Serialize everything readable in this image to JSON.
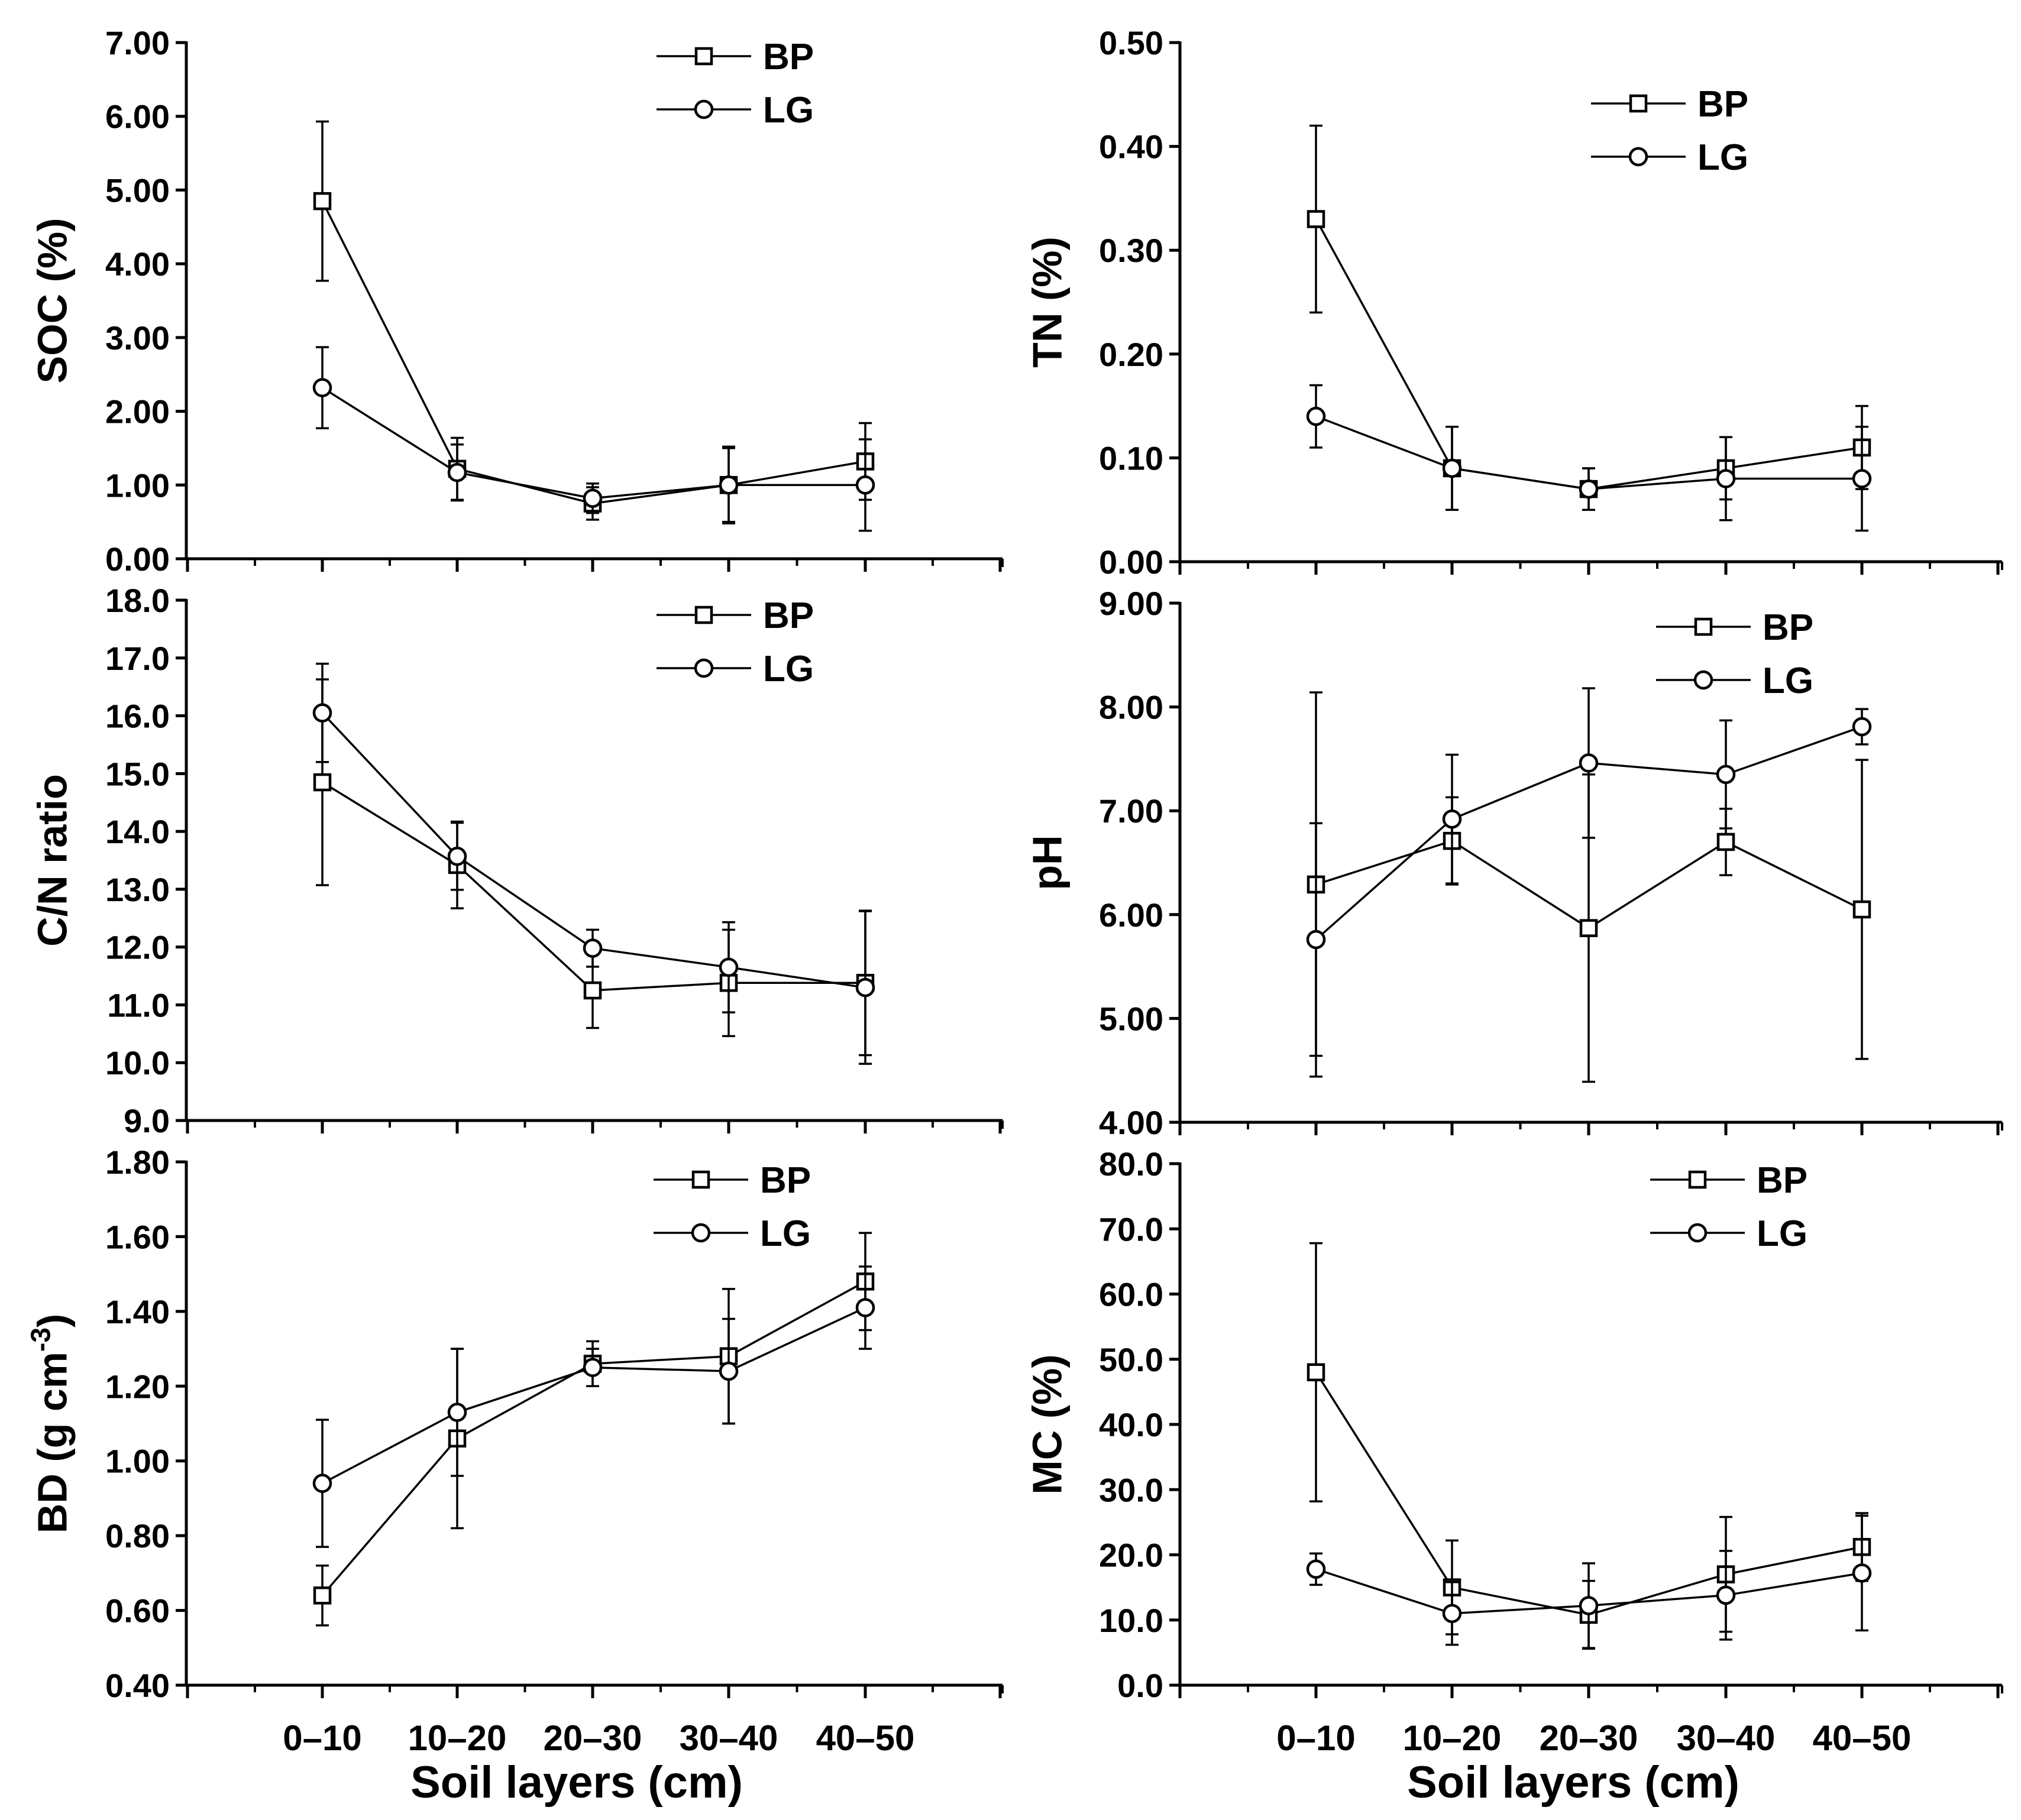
{
  "figure": {
    "x_axis_title": "Soil layers (cm)",
    "categories": [
      "0–10",
      "10–20",
      "20–30",
      "30–40",
      "40–50"
    ]
  },
  "chart_data": [
    {
      "id": "soc",
      "type": "line",
      "title": "",
      "ylabel": "SOC (%)",
      "ylim": [
        0,
        7
      ],
      "yticks": [
        "0.00",
        "1.00",
        "2.00",
        "3.00",
        "4.00",
        "5.00",
        "6.00",
        "7.00"
      ],
      "categories": [
        "0–10",
        "10–20",
        "20–30",
        "30–40",
        "40–50"
      ],
      "show_x_labels": false,
      "legend": "top-right",
      "series": [
        {
          "name": "BP",
          "marker": "square",
          "values": [
            4.85,
            1.22,
            0.75,
            1.0,
            1.32
          ],
          "errors": [
            1.08,
            0.42,
            0.22,
            0.52,
            0.52
          ]
        },
        {
          "name": "LG",
          "marker": "circle",
          "values": [
            2.32,
            1.17,
            0.82,
            1.0,
            1.0
          ],
          "errors": [
            0.55,
            0.38,
            0.2,
            0.5,
            0.62
          ]
        }
      ]
    },
    {
      "id": "tn",
      "type": "line",
      "title": "",
      "ylabel": "TN (%)",
      "ylim": [
        0,
        0.5
      ],
      "yticks": [
        "0.00",
        "0.10",
        "0.20",
        "0.30",
        "0.40",
        "0.50"
      ],
      "categories": [
        "0–10",
        "10–20",
        "20–30",
        "30–40",
        "40–50"
      ],
      "show_x_labels": false,
      "legend": "top-right",
      "series": [
        {
          "name": "BP",
          "marker": "square",
          "values": [
            0.33,
            0.09,
            0.07,
            0.09,
            0.11
          ],
          "errors": [
            0.09,
            0.04,
            0.02,
            0.03,
            0.04
          ]
        },
        {
          "name": "LG",
          "marker": "circle",
          "values": [
            0.14,
            0.09,
            0.07,
            0.08,
            0.08
          ],
          "errors": [
            0.03,
            0.04,
            0.02,
            0.04,
            0.05
          ]
        }
      ]
    },
    {
      "id": "cn",
      "type": "line",
      "title": "",
      "ylabel": "C/N ratio",
      "ylim": [
        9,
        18
      ],
      "yticks": [
        "9.0",
        "10.0",
        "11.0",
        "12.0",
        "13.0",
        "14.0",
        "15.0",
        "16.0",
        "17.0",
        "18.0"
      ],
      "categories": [
        "0–10",
        "10–20",
        "20–30",
        "30–40",
        "40–50"
      ],
      "show_x_labels": false,
      "legend": "top-right",
      "series": [
        {
          "name": "BP",
          "marker": "square",
          "values": [
            14.85,
            13.42,
            11.25,
            11.38,
            11.38
          ],
          "errors": [
            1.78,
            0.75,
            0.65,
            0.92,
            1.25
          ]
        },
        {
          "name": "LG",
          "marker": "circle",
          "values": [
            16.05,
            13.57,
            11.98,
            11.65,
            11.3
          ],
          "errors": [
            0.85,
            0.58,
            0.32,
            0.78,
            1.32
          ]
        }
      ]
    },
    {
      "id": "ph",
      "type": "line",
      "title": "",
      "ylabel": "pH",
      "ylim": [
        4,
        9
      ],
      "yticks": [
        "4.00",
        "5.00",
        "6.00",
        "7.00",
        "8.00",
        "9.00"
      ],
      "categories": [
        "0–10",
        "10–20",
        "20–30",
        "30–40",
        "40–50"
      ],
      "show_x_labels": false,
      "legend": "top-right",
      "series": [
        {
          "name": "BP",
          "marker": "square",
          "values": [
            6.29,
            6.71,
            5.87,
            6.7,
            6.05
          ],
          "errors": [
            1.85,
            0.42,
            1.48,
            0.32,
            1.44
          ]
        },
        {
          "name": "LG",
          "marker": "circle",
          "values": [
            5.76,
            6.92,
            7.46,
            7.35,
            7.81
          ],
          "errors": [
            1.12,
            0.62,
            0.72,
            0.52,
            0.17
          ]
        }
      ]
    },
    {
      "id": "bd",
      "type": "line",
      "title": "",
      "ylabel": "BD (g cm",
      "ylabel_superscript": "-3",
      "ylabel_suffix": ")",
      "ylim": [
        0.4,
        1.8
      ],
      "yticks": [
        "0.40",
        "0.60",
        "0.80",
        "1.00",
        "1.20",
        "1.40",
        "1.60",
        "1.80"
      ],
      "categories": [
        "0–10",
        "10–20",
        "20–30",
        "30–40",
        "40–50"
      ],
      "show_x_labels": true,
      "legend": "top-right",
      "series": [
        {
          "name": "BP",
          "marker": "square",
          "values": [
            0.64,
            1.06,
            1.26,
            1.28,
            1.48
          ],
          "errors": [
            0.08,
            0.24,
            0.06,
            0.18,
            0.13
          ]
        },
        {
          "name": "LG",
          "marker": "circle",
          "values": [
            0.94,
            1.13,
            1.25,
            1.24,
            1.41
          ],
          "errors": [
            0.17,
            0.17,
            0.05,
            0.14,
            0.11
          ]
        }
      ]
    },
    {
      "id": "mc",
      "type": "line",
      "title": "",
      "ylabel": "MC (%)",
      "ylim": [
        0,
        80
      ],
      "yticks": [
        "0.0",
        "10.0",
        "20.0",
        "30.0",
        "40.0",
        "50.0",
        "60.0",
        "70.0",
        "80.0"
      ],
      "categories": [
        "0–10",
        "10–20",
        "20–30",
        "30–40",
        "40–50"
      ],
      "show_x_labels": true,
      "legend": "top-right",
      "series": [
        {
          "name": "BP",
          "marker": "square",
          "values": [
            48.0,
            15.0,
            10.8,
            17.0,
            21.2
          ],
          "errors": [
            19.8,
            7.2,
            5.2,
            8.8,
            5.2
          ]
        },
        {
          "name": "LG",
          "marker": "circle",
          "values": [
            17.8,
            11.0,
            12.2,
            13.8,
            17.2
          ],
          "errors": [
            2.4,
            4.8,
            6.5,
            6.8,
            8.8
          ]
        }
      ]
    }
  ]
}
